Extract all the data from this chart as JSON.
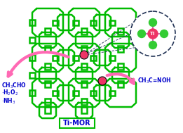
{
  "bg_color": "#ffffff",
  "zeolite_color": "#00bb00",
  "zeolite_lw": 1.8,
  "ti_color": "#ee3366",
  "o_color": "#33cc33",
  "arrow_color": "#ff69b4",
  "text_color": "#0000cc",
  "inset_border_color": "#223355",
  "catalyst_box_color": "#00bb00",
  "label_catalyst": "Ti-MOR",
  "inset_label": "Ti"
}
